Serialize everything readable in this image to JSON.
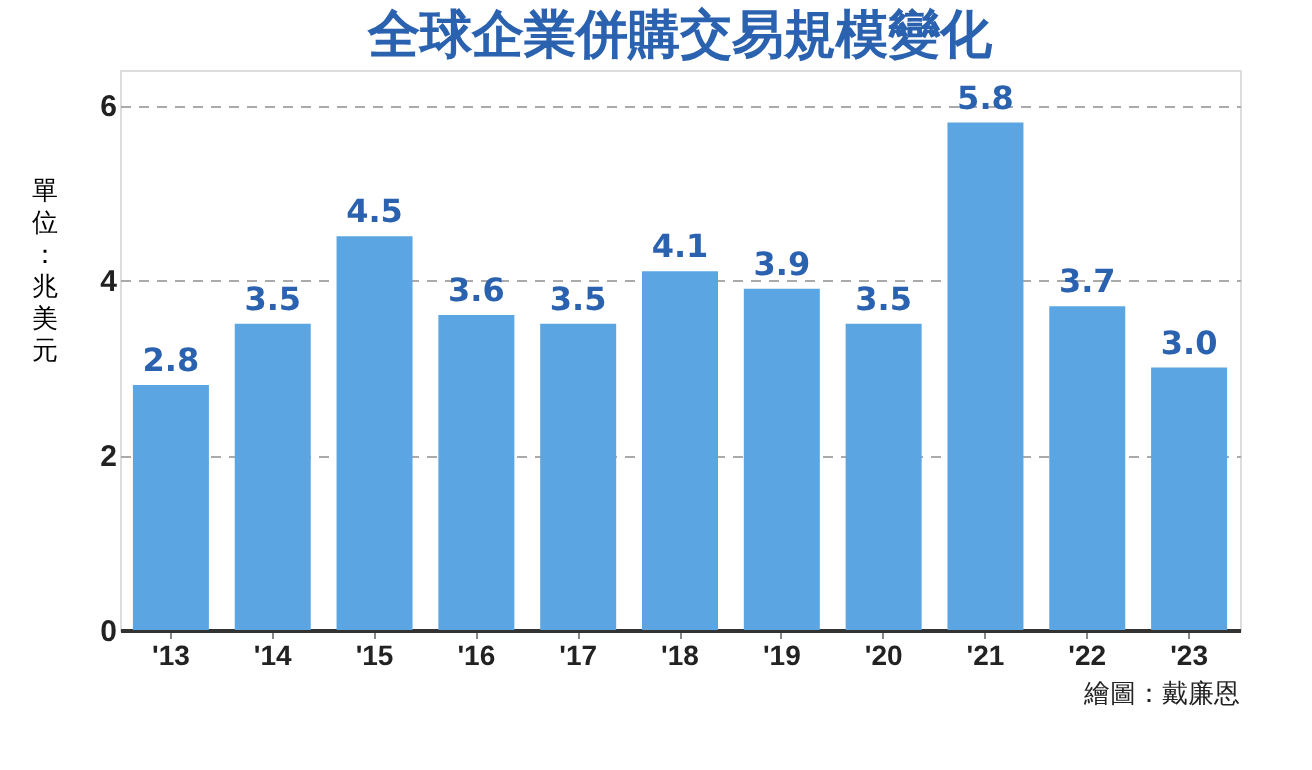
{
  "chart_data": {
    "type": "bar",
    "title": "全球企業併購交易規模變化",
    "ylabel": "單位：兆美元",
    "categories": [
      "'13",
      "'14",
      "'15",
      "'16",
      "'17",
      "'18",
      "'19",
      "'20",
      "'21",
      "'22",
      "'23"
    ],
    "values": [
      2.8,
      3.5,
      4.5,
      3.6,
      3.5,
      4.1,
      3.9,
      3.5,
      5.8,
      3.7,
      3.0
    ],
    "color": "#5aa5e2",
    "ylim": [
      0,
      6.4
    ],
    "yticks": [
      0,
      2,
      4,
      6
    ],
    "grid": "y",
    "value_labels": [
      "2.8",
      "3.5",
      "4.5",
      "3.6",
      "3.5",
      "4.1",
      "3.9",
      "3.5",
      "5.8",
      "3.7",
      "3.0"
    ],
    "annotations": [
      "繪圖：戴廉恩"
    ]
  }
}
